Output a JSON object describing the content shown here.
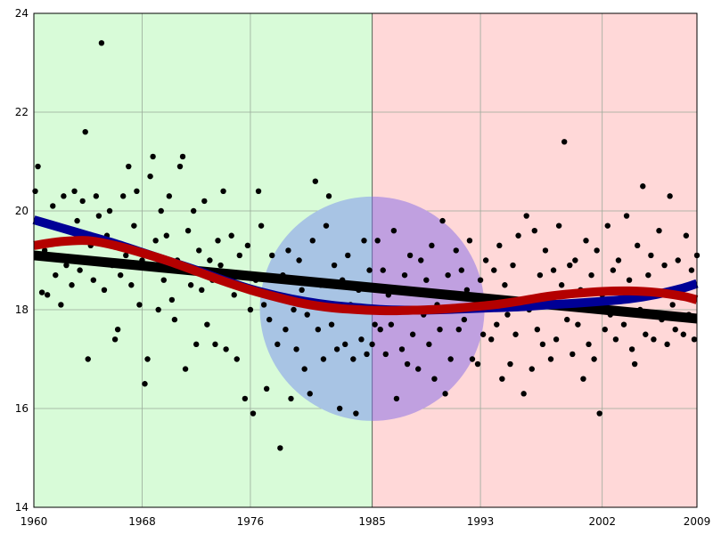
{
  "chart_data": {
    "type": "scatter",
    "title": "",
    "xlabel": "",
    "ylabel": "",
    "xlim": [
      1960,
      2009
    ],
    "ylim": [
      14,
      24
    ],
    "x_ticks": [
      1960,
      1968,
      1976,
      1985,
      1993,
      2002,
      2009
    ],
    "x_tick_labels": [
      "1960",
      "1968",
      "1976",
      "1985",
      "1993",
      "2002",
      "2009"
    ],
    "y_ticks": [
      14,
      16,
      18,
      20,
      22,
      24
    ],
    "y_tick_labels": [
      "14",
      "16",
      "18",
      "20",
      "22",
      "24"
    ],
    "grid": true,
    "colors": {
      "region_before": "#d8fbd8",
      "region_after": "#ffd8d8",
      "circle": "#8c88e8",
      "circle_left_tint": "#a8c4e4",
      "linear_trend": "#000000",
      "blue_curve": "#000096",
      "red_curve": "#b40000",
      "points": "#000000",
      "grid": "#9aaa9a"
    },
    "regions": [
      {
        "x_from": 1960,
        "x_to": 1985,
        "color": "#d8fbd8"
      },
      {
        "x_from": 1985,
        "x_to": 2009,
        "color": "#ffd8d8"
      }
    ],
    "circle": {
      "center_x": 1985,
      "center_y": 18.02,
      "radius_years": 8.3
    },
    "linear_trend": {
      "x": [
        1960,
        2009
      ],
      "y": [
        19.1,
        17.82
      ]
    },
    "blue_curve": {
      "x": [
        1960,
        1962,
        1964,
        1966,
        1968,
        1970,
        1972,
        1974,
        1976,
        1978,
        1980,
        1982,
        1984,
        1986,
        1988,
        1990,
        1992,
        1994,
        1996,
        1998,
        2000,
        2002,
        2004,
        2006,
        2008,
        2009
      ],
      "y": [
        19.82,
        19.66,
        19.5,
        19.34,
        19.16,
        18.98,
        18.8,
        18.6,
        18.42,
        18.28,
        18.17,
        18.09,
        18.04,
        18.0,
        17.99,
        18.0,
        18.02,
        18.04,
        18.06,
        18.1,
        18.13,
        18.17,
        18.22,
        18.31,
        18.44,
        18.53
      ]
    },
    "red_curve": {
      "x": [
        1960,
        1962,
        1964,
        1966,
        1968,
        1970,
        1972,
        1974,
        1976,
        1978,
        1980,
        1982,
        1984,
        1986,
        1988,
        1990,
        1992,
        1994,
        1996,
        1998,
        2000,
        2002,
        2004,
        2006,
        2008,
        2009
      ],
      "y": [
        19.3,
        19.38,
        19.4,
        19.3,
        19.15,
        18.98,
        18.78,
        18.58,
        18.4,
        18.25,
        18.12,
        18.04,
        18.0,
        17.98,
        17.99,
        18.01,
        18.05,
        18.1,
        18.18,
        18.27,
        18.33,
        18.37,
        18.38,
        18.35,
        18.27,
        18.2
      ]
    },
    "points": [
      [
        1960.1,
        20.4
      ],
      [
        1960.3,
        20.9
      ],
      [
        1960.4,
        19.1
      ],
      [
        1960.6,
        18.35
      ],
      [
        1960.8,
        19.2
      ],
      [
        1961.0,
        18.3
      ],
      [
        1961.2,
        19.7
      ],
      [
        1961.4,
        20.1
      ],
      [
        1961.6,
        18.7
      ],
      [
        1961.8,
        19.4
      ],
      [
        1962.0,
        18.1
      ],
      [
        1962.2,
        20.3
      ],
      [
        1962.4,
        18.9
      ],
      [
        1962.6,
        19.6
      ],
      [
        1962.8,
        18.5
      ],
      [
        1963.0,
        20.4
      ],
      [
        1963.2,
        19.8
      ],
      [
        1963.4,
        18.8
      ],
      [
        1963.6,
        20.2
      ],
      [
        1963.8,
        21.6
      ],
      [
        1964.0,
        17.0
      ],
      [
        1964.2,
        19.3
      ],
      [
        1964.4,
        18.6
      ],
      [
        1964.6,
        20.3
      ],
      [
        1964.8,
        19.9
      ],
      [
        1965.0,
        23.4
      ],
      [
        1965.2,
        18.4
      ],
      [
        1965.4,
        19.5
      ],
      [
        1965.6,
        20.0
      ],
      [
        1965.8,
        18.9
      ],
      [
        1966.0,
        17.4
      ],
      [
        1966.2,
        17.6
      ],
      [
        1966.4,
        18.7
      ],
      [
        1966.6,
        20.3
      ],
      [
        1966.8,
        19.1
      ],
      [
        1967.0,
        20.9
      ],
      [
        1967.2,
        18.5
      ],
      [
        1967.4,
        19.7
      ],
      [
        1967.6,
        20.4
      ],
      [
        1967.8,
        18.1
      ],
      [
        1968.0,
        19.0
      ],
      [
        1968.2,
        16.5
      ],
      [
        1968.4,
        17.0
      ],
      [
        1968.6,
        20.7
      ],
      [
        1968.8,
        21.1
      ],
      [
        1969.0,
        19.4
      ],
      [
        1969.2,
        18.0
      ],
      [
        1969.4,
        20.0
      ],
      [
        1969.6,
        18.6
      ],
      [
        1969.8,
        19.5
      ],
      [
        1970.0,
        20.3
      ],
      [
        1970.2,
        18.2
      ],
      [
        1970.4,
        17.8
      ],
      [
        1970.6,
        19.0
      ],
      [
        1970.8,
        20.9
      ],
      [
        1971.0,
        21.1
      ],
      [
        1971.2,
        16.8
      ],
      [
        1971.4,
        19.6
      ],
      [
        1971.6,
        18.5
      ],
      [
        1971.8,
        20.0
      ],
      [
        1972.0,
        17.3
      ],
      [
        1972.2,
        19.2
      ],
      [
        1972.4,
        18.4
      ],
      [
        1972.6,
        20.2
      ],
      [
        1972.8,
        17.7
      ],
      [
        1973.0,
        19.0
      ],
      [
        1973.2,
        18.6
      ],
      [
        1973.4,
        17.3
      ],
      [
        1973.6,
        19.4
      ],
      [
        1973.8,
        18.9
      ],
      [
        1974.0,
        20.4
      ],
      [
        1974.2,
        17.2
      ],
      [
        1974.4,
        18.7
      ],
      [
        1974.6,
        19.5
      ],
      [
        1974.8,
        18.3
      ],
      [
        1975.0,
        17.0
      ],
      [
        1975.2,
        19.1
      ],
      [
        1975.4,
        18.5
      ],
      [
        1975.6,
        16.2
      ],
      [
        1975.8,
        19.3
      ],
      [
        1976.0,
        18.0
      ],
      [
        1976.2,
        15.9
      ],
      [
        1976.4,
        18.6
      ],
      [
        1976.6,
        20.4
      ],
      [
        1976.8,
        19.7
      ],
      [
        1977.0,
        18.1
      ],
      [
        1977.2,
        16.4
      ],
      [
        1977.4,
        17.8
      ],
      [
        1977.6,
        19.1
      ],
      [
        1977.8,
        18.3
      ],
      [
        1978.0,
        17.3
      ],
      [
        1978.2,
        15.2
      ],
      [
        1978.4,
        18.7
      ],
      [
        1978.6,
        17.6
      ],
      [
        1978.8,
        19.2
      ],
      [
        1979.0,
        16.2
      ],
      [
        1979.2,
        18.0
      ],
      [
        1979.4,
        17.2
      ],
      [
        1979.6,
        19.0
      ],
      [
        1979.8,
        18.4
      ],
      [
        1980.0,
        16.8
      ],
      [
        1980.2,
        17.9
      ],
      [
        1980.4,
        16.3
      ],
      [
        1980.6,
        19.4
      ],
      [
        1980.8,
        20.6
      ],
      [
        1981.0,
        17.6
      ],
      [
        1981.2,
        18.5
      ],
      [
        1981.4,
        17.0
      ],
      [
        1981.6,
        19.7
      ],
      [
        1981.8,
        20.3
      ],
      [
        1982.0,
        17.7
      ],
      [
        1982.2,
        18.9
      ],
      [
        1982.4,
        17.2
      ],
      [
        1982.6,
        16.0
      ],
      [
        1982.8,
        18.6
      ],
      [
        1983.0,
        17.3
      ],
      [
        1983.2,
        19.1
      ],
      [
        1983.4,
        18.1
      ],
      [
        1983.6,
        17.0
      ],
      [
        1983.8,
        15.9
      ],
      [
        1984.0,
        18.4
      ],
      [
        1984.2,
        17.4
      ],
      [
        1984.4,
        19.4
      ],
      [
        1984.6,
        17.1
      ],
      [
        1984.8,
        18.8
      ],
      [
        1985.0,
        17.3
      ],
      [
        1985.2,
        17.7
      ],
      [
        1985.4,
        19.4
      ],
      [
        1985.6,
        17.6
      ],
      [
        1985.8,
        18.8
      ],
      [
        1986.0,
        17.1
      ],
      [
        1986.2,
        18.3
      ],
      [
        1986.4,
        17.7
      ],
      [
        1986.6,
        19.6
      ],
      [
        1986.8,
        16.2
      ],
      [
        1987.0,
        18.0
      ],
      [
        1987.2,
        17.2
      ],
      [
        1987.4,
        18.7
      ],
      [
        1987.6,
        16.9
      ],
      [
        1987.8,
        19.1
      ],
      [
        1988.0,
        17.5
      ],
      [
        1988.2,
        18.4
      ],
      [
        1988.4,
        16.8
      ],
      [
        1988.6,
        19.0
      ],
      [
        1988.8,
        17.9
      ],
      [
        1989.0,
        18.6
      ],
      [
        1989.2,
        17.3
      ],
      [
        1989.4,
        19.3
      ],
      [
        1989.6,
        16.6
      ],
      [
        1989.8,
        18.1
      ],
      [
        1990.0,
        17.6
      ],
      [
        1990.2,
        19.8
      ],
      [
        1990.4,
        16.3
      ],
      [
        1990.6,
        18.7
      ],
      [
        1990.8,
        17.0
      ],
      [
        1991.0,
        18.3
      ],
      [
        1991.2,
        19.2
      ],
      [
        1991.4,
        17.6
      ],
      [
        1991.6,
        18.8
      ],
      [
        1991.8,
        17.8
      ],
      [
        1992.0,
        18.4
      ],
      [
        1992.2,
        19.4
      ],
      [
        1992.4,
        17.0
      ],
      [
        1992.6,
        18.0
      ],
      [
        1992.8,
        16.9
      ],
      [
        1993.0,
        18.6
      ],
      [
        1993.2,
        17.5
      ],
      [
        1993.4,
        19.0
      ],
      [
        1993.6,
        18.2
      ],
      [
        1993.8,
        17.4
      ],
      [
        1994.0,
        18.8
      ],
      [
        1994.2,
        17.7
      ],
      [
        1994.4,
        19.3
      ],
      [
        1994.6,
        16.6
      ],
      [
        1994.8,
        18.5
      ],
      [
        1995.0,
        17.9
      ],
      [
        1995.2,
        16.9
      ],
      [
        1995.4,
        18.9
      ],
      [
        1995.6,
        17.5
      ],
      [
        1995.8,
        19.5
      ],
      [
        1996.0,
        18.2
      ],
      [
        1996.2,
        16.3
      ],
      [
        1996.4,
        19.9
      ],
      [
        1996.6,
        18.0
      ],
      [
        1996.8,
        16.8
      ],
      [
        1997.0,
        19.6
      ],
      [
        1997.2,
        17.6
      ],
      [
        1997.4,
        18.7
      ],
      [
        1997.6,
        17.3
      ],
      [
        1997.8,
        19.2
      ],
      [
        1998.0,
        18.1
      ],
      [
        1998.2,
        17.0
      ],
      [
        1998.4,
        18.8
      ],
      [
        1998.6,
        17.4
      ],
      [
        1998.8,
        19.7
      ],
      [
        1999.0,
        18.5
      ],
      [
        1999.2,
        21.4
      ],
      [
        1999.4,
        17.8
      ],
      [
        1999.6,
        18.9
      ],
      [
        1999.8,
        17.1
      ],
      [
        2000.0,
        19.0
      ],
      [
        2000.2,
        17.7
      ],
      [
        2000.4,
        18.4
      ],
      [
        2000.6,
        16.6
      ],
      [
        2000.8,
        19.4
      ],
      [
        2001.0,
        17.3
      ],
      [
        2001.2,
        18.7
      ],
      [
        2001.4,
        17.0
      ],
      [
        2001.6,
        19.2
      ],
      [
        2001.8,
        15.9
      ],
      [
        2002.0,
        18.3
      ],
      [
        2002.2,
        17.6
      ],
      [
        2002.4,
        19.7
      ],
      [
        2002.6,
        17.9
      ],
      [
        2002.8,
        18.8
      ],
      [
        2003.0,
        17.4
      ],
      [
        2003.2,
        19.0
      ],
      [
        2003.4,
        18.2
      ],
      [
        2003.6,
        17.7
      ],
      [
        2003.8,
        19.9
      ],
      [
        2004.0,
        18.6
      ],
      [
        2004.2,
        17.2
      ],
      [
        2004.4,
        16.9
      ],
      [
        2004.6,
        19.3
      ],
      [
        2004.8,
        18.0
      ],
      [
        2005.0,
        20.5
      ],
      [
        2005.2,
        17.5
      ],
      [
        2005.4,
        18.7
      ],
      [
        2005.6,
        19.1
      ],
      [
        2005.8,
        17.4
      ],
      [
        2006.0,
        18.3
      ],
      [
        2006.2,
        19.6
      ],
      [
        2006.4,
        17.8
      ],
      [
        2006.6,
        18.9
      ],
      [
        2006.8,
        17.3
      ],
      [
        2007.0,
        20.3
      ],
      [
        2007.2,
        18.1
      ],
      [
        2007.4,
        17.6
      ],
      [
        2007.6,
        19.0
      ],
      [
        2007.8,
        18.4
      ],
      [
        2008.0,
        17.5
      ],
      [
        2008.2,
        19.5
      ],
      [
        2008.4,
        17.9
      ],
      [
        2008.6,
        18.8
      ],
      [
        2008.8,
        17.4
      ],
      [
        2009.0,
        19.1
      ]
    ]
  }
}
